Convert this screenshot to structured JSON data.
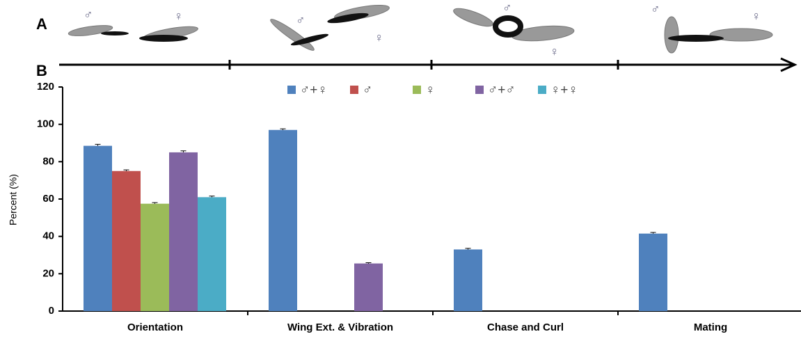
{
  "panel_labels": [
    "A",
    "B"
  ],
  "illustration_symbols": [
    "♂",
    "♀",
    "♂",
    "♀",
    "♂",
    "♀",
    "♂",
    "♀"
  ],
  "chart_data": {
    "type": "bar",
    "y_axis_label": "Percent (%)",
    "categories": [
      "Orientation",
      "Wing Ext. & Vibration",
      "Chase and Curl",
      "Mating"
    ],
    "series": [
      {
        "name": "♂+♀",
        "color": "#4f81bd",
        "values": [
          88.5,
          97,
          33,
          41.5
        ],
        "errors": [
          0.8,
          0.6,
          0.6,
          0.6
        ]
      },
      {
        "name": "♂",
        "color": "#c0504d",
        "values": [
          75,
          null,
          null,
          null
        ],
        "errors": [
          0.6,
          null,
          null,
          null
        ]
      },
      {
        "name": "♀",
        "color": "#9bbb59",
        "values": [
          57.5,
          null,
          null,
          null
        ],
        "errors": [
          0.6,
          null,
          null,
          null
        ]
      },
      {
        "name": "♂+♂",
        "color": "#8064a2",
        "values": [
          85,
          25.5,
          null,
          null
        ],
        "errors": [
          0.8,
          0.4,
          null,
          null
        ]
      },
      {
        "name": "♀+♀",
        "color": "#4bacc6",
        "values": [
          61,
          null,
          null,
          null
        ],
        "errors": [
          0.6,
          null,
          null,
          null
        ]
      }
    ],
    "ylim": [
      0,
      120
    ],
    "yticks": [
      0,
      20,
      40,
      60,
      80,
      100,
      120
    ],
    "grid": false
  }
}
